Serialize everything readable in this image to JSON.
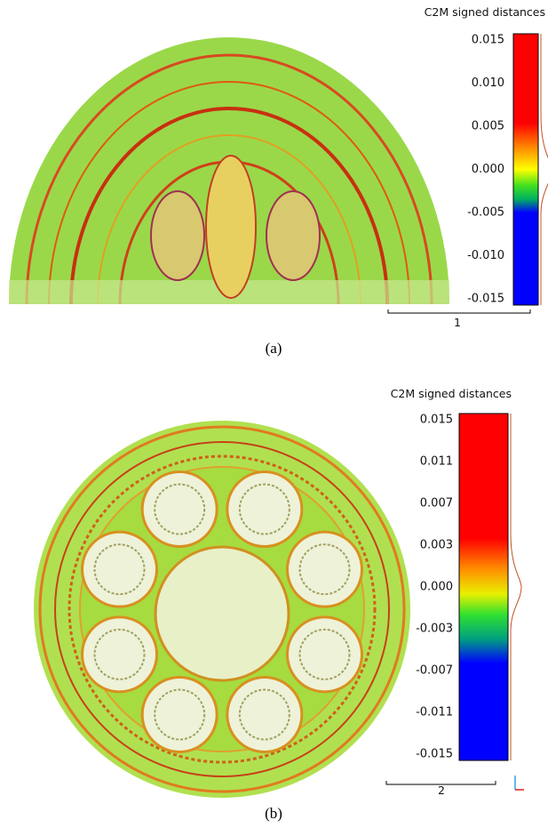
{
  "panels": [
    {
      "title": "C2M signed distances",
      "ticks": [
        "0.015",
        "0.010",
        "0.005",
        "0.000",
        "-0.005",
        "-0.010",
        "-0.015"
      ],
      "scale_label": "1",
      "caption": "(a)"
    },
    {
      "title": "C2M signed distances",
      "ticks": [
        "0.015",
        "0.011",
        "0.007",
        "0.003",
        "0.000",
        "-0.003",
        "-0.007",
        "-0.011",
        "-0.015"
      ],
      "scale_label": "2",
      "caption": "(b)"
    }
  ]
}
